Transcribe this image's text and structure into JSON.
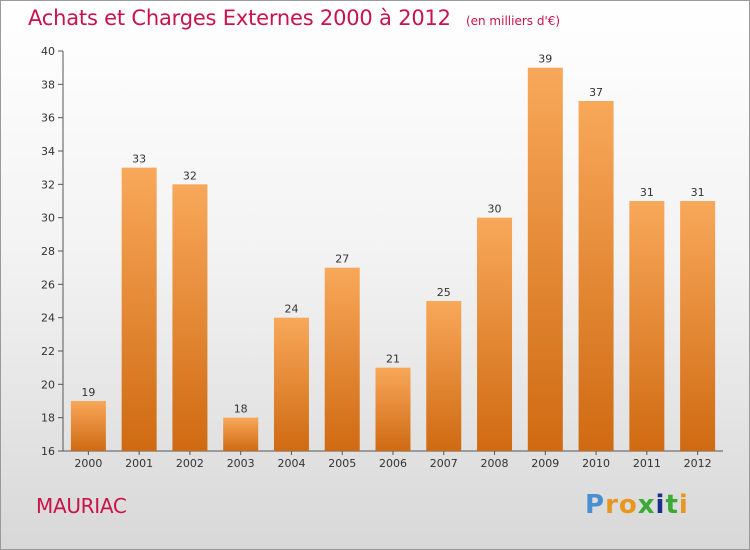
{
  "title": "Achats et Charges Externes 2000 à 2012",
  "unit_note": "(en milliers d'€)",
  "city": "MAURIAC",
  "logo": {
    "text": "Proxiti",
    "letters": [
      "P",
      "r",
      "o",
      "x",
      "i",
      "t",
      "i"
    ],
    "colors": [
      "#4a8fd0",
      "#e8961e",
      "#e8961e",
      "#3aaa35",
      "#1b2f8a",
      "#3aaa35",
      "#e8961e"
    ]
  },
  "colors": {
    "title": "#c8144b",
    "bar_top": "#f8a85a",
    "bar_bottom": "#cf6a12",
    "axis": "#555555"
  },
  "chart_data": {
    "type": "bar",
    "title": "Achats et Charges Externes 2000 à 2012",
    "categories": [
      "2000",
      "2001",
      "2002",
      "2003",
      "2004",
      "2005",
      "2006",
      "2007",
      "2008",
      "2009",
      "2010",
      "2011",
      "2012"
    ],
    "values": [
      19,
      33,
      32,
      18,
      24,
      27,
      21,
      25,
      30,
      39,
      37,
      31,
      31
    ],
    "yticks": [
      16,
      18,
      20,
      22,
      24,
      26,
      28,
      30,
      32,
      34,
      36,
      38,
      40
    ],
    "ylim": [
      16,
      40
    ],
    "grid": false,
    "data_labels": true
  }
}
